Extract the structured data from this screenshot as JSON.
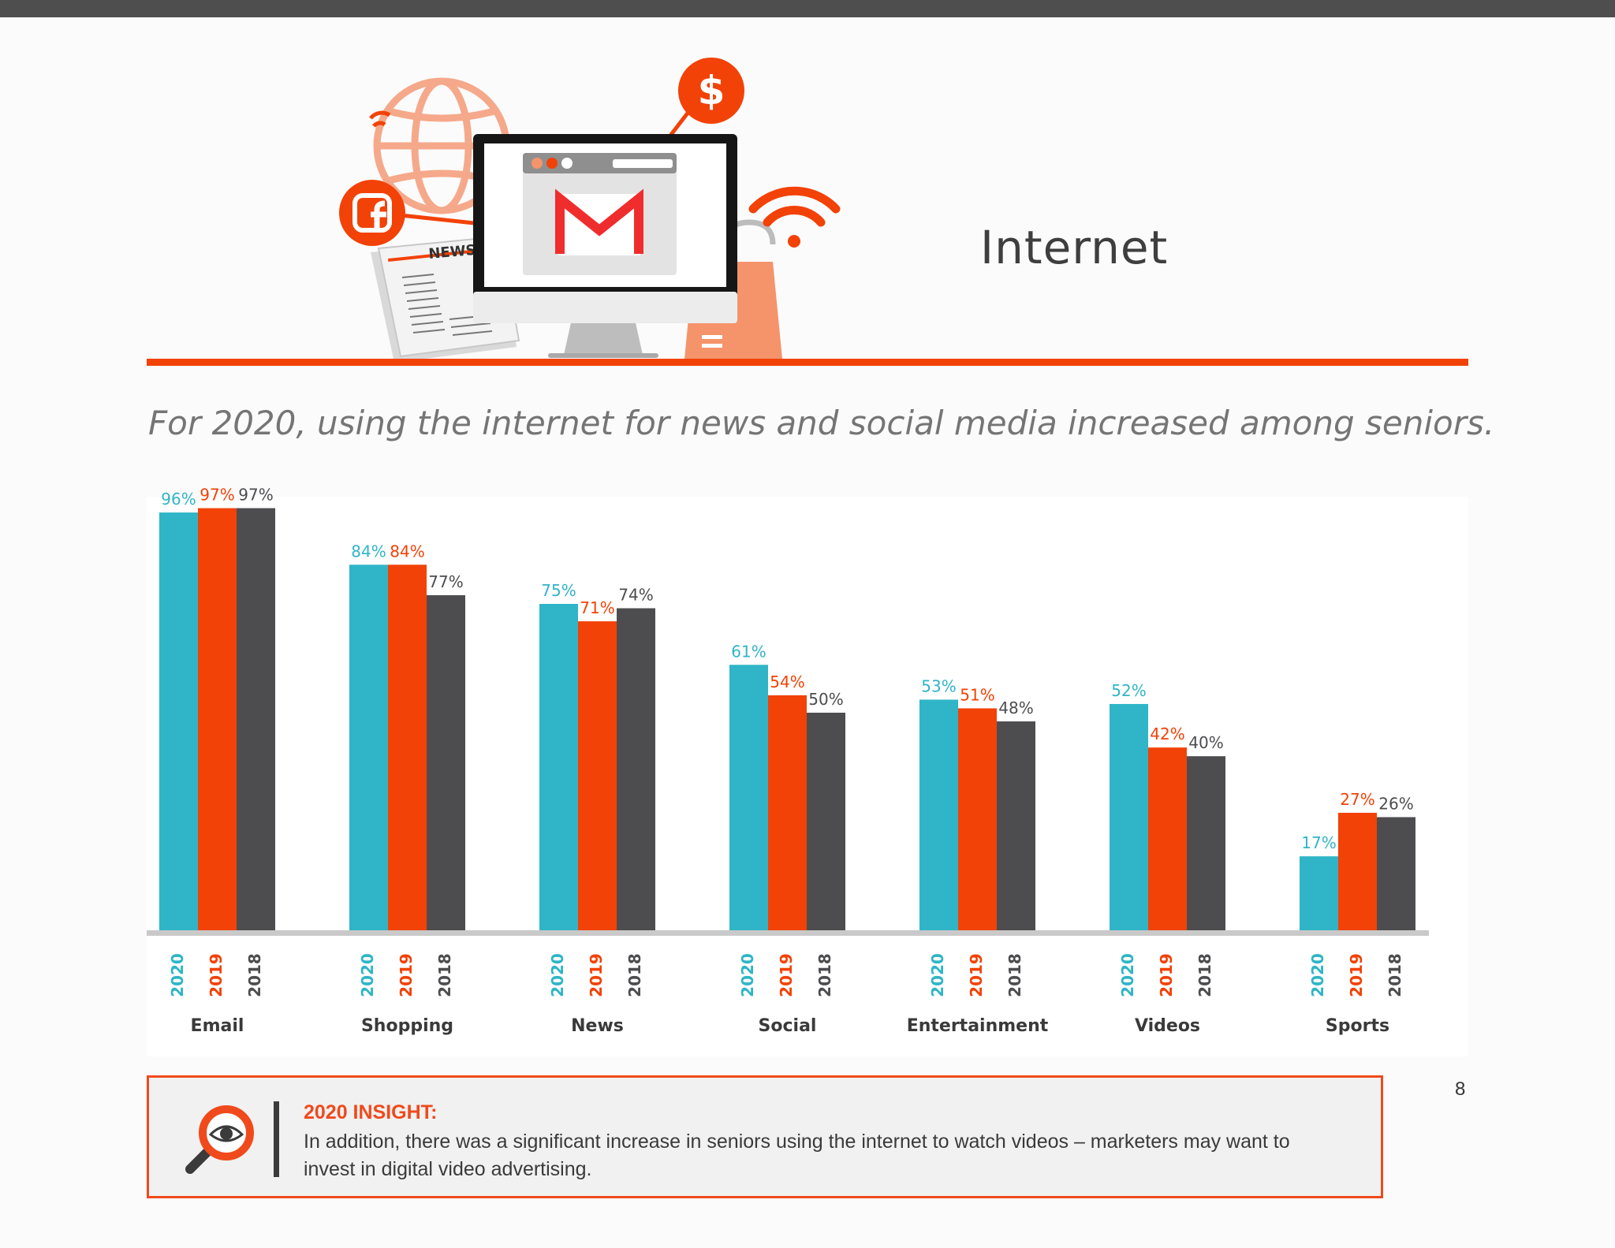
{
  "header": {
    "title": "Internet",
    "subtitle": "For 2020, using the internet for news and social media increased among seniors.",
    "illustration_label": "NEWS",
    "dollar_symbol": "$"
  },
  "colors": {
    "accent": "#f24207",
    "series_2020": "#2fb5c7",
    "series_2019": "#f24207",
    "series_2018": "#4d4d50",
    "top_bar": "#4e4e4e"
  },
  "icons": [
    "facebook-icon",
    "globe-icon",
    "wifi-icon",
    "dollar-icon",
    "newspaper-icon",
    "monitor-icon",
    "gmail-icon",
    "shopping-bag-icon",
    "magnifier-icon"
  ],
  "chart_data": {
    "type": "bar",
    "title": "",
    "xlabel": "",
    "ylabel": "",
    "ylim": [
      0,
      100
    ],
    "grid": false,
    "legend": "none",
    "categories": [
      "Email",
      "Shopping",
      "News",
      "Social",
      "Entertainment",
      "Videos",
      "Sports"
    ],
    "series": [
      {
        "name": "2020",
        "color": "#2fb5c7",
        "values": [
          96,
          84,
          75,
          61,
          53,
          52,
          17
        ],
        "labels": [
          "96%",
          "84%",
          "75%",
          "61%",
          "53%",
          "52%",
          "17%"
        ]
      },
      {
        "name": "2019",
        "color": "#f24207",
        "values": [
          97,
          84,
          71,
          54,
          51,
          42,
          27
        ],
        "labels": [
          "97%",
          "84%",
          "71%",
          "54%",
          "51%",
          "42%",
          "27%"
        ]
      },
      {
        "name": "2018",
        "color": "#4d4d50",
        "values": [
          97,
          77,
          74,
          50,
          48,
          40,
          26
        ],
        "labels": [
          "97%",
          "77%",
          "74%",
          "50%",
          "48%",
          "40%",
          "26%"
        ]
      }
    ]
  },
  "insight": {
    "title": "2020 INSIGHT:",
    "text": "In addition, there was a significant increase in seniors using the internet to watch videos – marketers may want to invest in digital video advertising."
  },
  "page_number": "8"
}
